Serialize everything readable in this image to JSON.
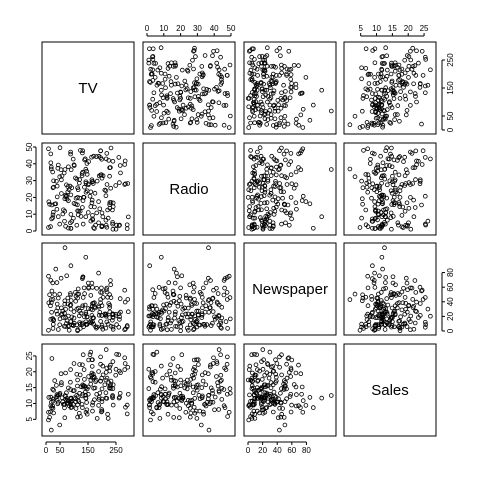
{
  "chart_data": {
    "type": "scatter",
    "variables": [
      "TV",
      "Radio",
      "Newspaper",
      "Sales"
    ],
    "ranges": {
      "TV": [
        0,
        300
      ],
      "Radio": [
        0,
        50
      ],
      "Newspaper": [
        0,
        115
      ],
      "Sales": [
        1,
        27.5
      ]
    },
    "ticks": {
      "TV": [
        0,
        50,
        150,
        250
      ],
      "Radio": [
        0,
        10,
        20,
        30,
        40,
        50
      ],
      "Newspaper": [
        0,
        20,
        40,
        60,
        80
      ],
      "Sales": [
        5,
        10,
        15,
        20,
        25
      ]
    },
    "outer_axes": {
      "top": {
        "col1": "Radio",
        "col3": "Sales"
      },
      "bottom": {
        "col0": "TV",
        "col2": "Newspaper"
      },
      "left": {
        "row1": "Radio",
        "row3": "Sales"
      },
      "right": {
        "row0": "TV",
        "row2": "Newspaper"
      }
    },
    "x": {
      "TV": [
        230,
        44,
        17,
        152,
        181,
        9,
        57,
        120,
        9,
        200,
        66,
        214,
        24,
        98,
        204,
        195,
        68,
        281,
        70,
        147,
        218,
        238,
        13,
        228,
        62,
        263,
        142,
        240,
        249,
        106,
        292,
        10,
        89,
        113,
        290,
        49,
        260,
        232,
        86,
        227,
        55,
        195,
        281,
        294,
        25,
        175,
        89,
        239,
        227,
        67,
        200,
        25,
        283,
        217,
        262,
        152,
        67,
        50,
        166,
        170,
        199,
        21,
        37,
        97,
        166,
        83,
        240,
        73,
        163,
        120,
        173,
        129,
        92,
        115,
        195,
        89,
        119,
        27,
        222,
        40,
        238,
        40,
        189,
        140,
        165,
        151,
        17,
        231,
        131,
        87,
        173,
        198,
        54,
        130,
        105,
        177,
        214,
        138,
        133,
        31,
        142,
        164,
        170,
        239,
        136,
        110,
        143,
        20,
        183,
        215,
        214,
        203,
        101,
        131,
        200,
        142,
        237,
        188,
        55,
        220,
        112,
        27,
        217,
        132,
        266,
        117,
        147,
        284,
        195,
        129,
        19,
        44,
        113,
        164,
        92,
        143,
        166,
        250,
        113,
        88,
        74,
        169,
        188,
        19,
        26,
        145,
        265,
        157,
        80,
        78,
        160,
        75,
        224,
        122,
        134,
        49,
        125,
        78,
        16,
        151,
        88,
        192,
        80,
        199,
        35,
        190,
        146,
        115,
        232,
        227,
        107,
        24,
        166,
        89,
        90,
        215,
        228,
        261,
        100,
        110,
        60,
        70,
        130,
        160,
        137,
        100,
        167,
        180,
        210,
        290,
        80,
        42,
        123,
        70,
        160,
        200,
        65,
        39,
        252,
        240
      ]
    },
    "y": {
      "Radio": [
        37.8,
        39.3,
        45.9,
        41.3,
        10.8,
        48.9,
        32.8,
        19.6,
        2.1,
        2.6,
        5.8,
        24,
        35.1,
        7.6,
        32.9,
        47.7,
        36.6,
        39.6,
        20.5,
        23.9,
        27.7,
        5.1,
        15.9,
        16.9,
        12.6,
        3.5,
        29.3,
        16.7,
        27.1,
        16,
        28.3,
        17.4,
        1.5,
        20,
        1.4,
        4.1,
        43.8,
        49.4,
        26.7,
        37.7,
        22.3,
        33.4,
        27.7,
        8.4,
        25.7,
        22.5,
        9.9,
        41.5,
        15.8,
        11.7,
        3.1,
        9.6,
        41.7,
        46.2,
        28.8,
        28.1,
        19.2,
        49.6,
        29.5,
        2,
        42.7,
        15.5,
        29.6,
        42.8,
        9.3,
        24.6,
        14.5,
        27.5,
        43.9,
        30.6,
        14.3,
        33,
        5.7,
        24.6,
        43.7,
        1.6,
        28.5,
        29.9,
        7.7,
        26.7,
        4.1,
        20.3,
        44.5,
        43,
        18.4,
        27.5,
        40.6,
        25.5,
        47.8,
        4.9,
        1.5,
        33.5,
        36.5,
        14,
        31.6,
        3.5,
        21,
        42.3,
        4.1,
        16.1,
        8.5,
        30.5,
        44.5,
        1.1,
        20,
        3.4,
        23.1,
        7.2,
        29.7,
        3.4,
        6.4,
        8.5,
        38.9,
        35,
        10.8,
        36.8,
        12.5,
        17.5,
        30.4,
        12.5,
        15.6,
        26.1,
        2.2,
        18.1,
        34.6,
        11.9,
        33.7,
        28.1,
        47.8,
        34.2,
        36.9,
        8.6,
        25.8,
        16.8,
        25.8,
        28.4,
        7.2,
        1.1,
        12,
        47,
        20.7,
        28.3,
        4.9,
        38.1,
        11.2,
        35.6,
        39,
        20.7,
        1.7,
        26.4,
        23.3,
        18.9,
        42,
        11.8,
        20.1,
        32.3,
        8.7,
        23.4,
        2.6,
        11,
        45.8,
        13.2,
        38.2,
        2.5,
        16.2,
        32.8,
        40.2,
        9.6,
        17,
        32.6,
        19.5,
        8,
        29.2,
        21.5,
        36.5,
        42.9,
        13.5,
        3.2,
        16.4,
        30.9,
        10.1,
        21.3,
        46.4,
        5.9,
        26.1,
        39.4,
        6.6,
        44.3,
        24.4,
        3.7,
        18,
        37.3,
        48,
        2.8,
        14.5,
        31.4,
        34.5,
        12.9,
        3.5,
        22.5
      ],
      "Newspaper": [
        69.2,
        45.1,
        69.3,
        58.5,
        58.4,
        75,
        23.5,
        11.6,
        1,
        21.2,
        24.2,
        4,
        65.9,
        7.2,
        46,
        52.9,
        114,
        55.8,
        18.3,
        19.1,
        53.4,
        23.5,
        49.6,
        26.2,
        18.3,
        19.5,
        12.6,
        22.9,
        22.9,
        40.8,
        43.2,
        38.6,
        30,
        0.3,
        7.4,
        8.5,
        5,
        45.7,
        35.1,
        32,
        31.6,
        38.7,
        1.8,
        26.4,
        43.3,
        31.5,
        35.7,
        18.5,
        49.9,
        36.8,
        34.6,
        3.6,
        39.6,
        58.7,
        15.9,
        60,
        41.4,
        16.6,
        37.7,
        9.3,
        21.4,
        54.7,
        27.3,
        8.4,
        28.9,
        0.9,
        2.2,
        10.2,
        11,
        27.2,
        38.7,
        31.7,
        19.3,
        31.3,
        13.1,
        89.4,
        20.7,
        14.2,
        9.4,
        23.1,
        22.3,
        36.9,
        32.5,
        35.6,
        33.8,
        65.7,
        16,
        63.2,
        73.4,
        51.4,
        33,
        59,
        72.3,
        10.9,
        52.9,
        5.9,
        22,
        51.2,
        45.9,
        49.8,
        100.9,
        21.4,
        17.9,
        5.3,
        59,
        29.7,
        23.2,
        25.6,
        5.5,
        56.5,
        23.2,
        2.4,
        10.7,
        34.5,
        52.7,
        25.6,
        14.8,
        79.2,
        22.3,
        46.2,
        50.4,
        15.6,
        12.4,
        74.2,
        25.9,
        50.6,
        9.2,
        3.2,
        43.1,
        8.7,
        43,
        2.1,
        45.1,
        65.6,
        8.5,
        9.3,
        59.7,
        20.5,
        1.7,
        12.9,
        75.6,
        37.9,
        34.4,
        38.9,
        9,
        8.7,
        44.3,
        11.9,
        20.6,
        37,
        48.7,
        14.2,
        37.7,
        9.5,
        5.7,
        50.5,
        24.3,
        45.2,
        34.6,
        30.7,
        49.3,
        25.6,
        7.4,
        5.4,
        84.8,
        21.6,
        19.4,
        57.6,
        6.4,
        18.4,
        47.4,
        17,
        12.8,
        13.1,
        41.8,
        20.3,
        35.2,
        23.7,
        17.6,
        8.3,
        27.4,
        29.7,
        71.8,
        30,
        19.6,
        26.6,
        18.2,
        3.7,
        23.4,
        5.8,
        6,
        31.6,
        3.6,
        6,
        13.8,
        8.1,
        6.4,
        66.2,
        8.7
      ],
      "Sales": [
        22.1,
        10.4,
        9.3,
        18.5,
        12.9,
        7.2,
        11.8,
        13.2,
        4.8,
        10.6,
        8.6,
        17.4,
        9.2,
        9.7,
        19,
        22.4,
        12.5,
        24.4,
        11.3,
        14.6,
        18,
        12.5,
        5.6,
        15.5,
        9.7,
        12,
        15,
        15.9,
        18.9,
        10.5,
        21.4,
        11.9,
        9.6,
        17.4,
        9.5,
        12.8,
        25.4,
        14.7,
        10.1,
        21.5,
        16.6,
        17.1,
        20.7,
        12.9,
        8.5,
        14.9,
        10.6,
        23.2,
        14.8,
        9.7,
        11.4,
        10.7,
        22.6,
        21.2,
        20.2,
        23.7,
        5.5,
        13.2,
        23.8,
        18.4,
        8.1,
        24.2,
        15.7,
        14,
        18,
        9.3,
        9.5,
        13.4,
        18.9,
        22.3,
        18.3,
        12.4,
        8.8,
        11,
        17,
        8.7,
        6.9,
        14.2,
        5.3,
        11,
        11.8,
        12.3,
        11.3,
        13.6,
        21.7,
        15.2,
        12,
        16,
        12.9,
        16.7,
        11.2,
        7.3,
        19.4,
        22.2,
        11.5,
        16.9,
        11.7,
        15.5,
        25.4,
        17.2,
        11.7,
        23.8,
        14.8,
        14.7,
        20.7,
        19.2,
        7.2,
        8.7,
        5.3,
        19.8,
        13.4,
        21.8,
        14.1,
        15.9,
        14.6,
        12.6,
        12.2,
        9.4,
        15.9,
        6.6,
        15.5,
        7,
        11.6,
        15.2,
        19.7,
        10.6,
        6.6,
        8.8,
        24.7,
        9.7,
        1.6,
        12.7,
        5.7,
        19.6,
        10.8,
        11.6,
        9.5,
        20.8,
        9.6,
        20.7,
        10.9,
        19.2,
        20.1,
        10.4,
        11.4,
        10.3,
        13.2,
        25.4,
        10.9,
        10.1,
        16.1,
        11.6,
        16.6,
        19,
        15.6,
        3.2,
        15.3,
        10.1,
        7.3,
        12.9,
        14.4,
        13.3,
        14.9,
        18,
        11.9,
        11.9,
        8,
        12.2,
        17.1,
        15,
        8.4,
        14.5,
        7.6,
        11.7,
        11.5,
        27,
        20.2,
        11.7,
        11.8,
        12.6,
        10.5,
        12.2,
        8.7,
        26.2,
        17.6,
        22.6,
        10.3,
        17.3,
        15.9,
        6.7,
        10.8,
        9.9,
        5.9,
        19.6,
        17.3,
        7.6,
        9.7,
        12.8,
        25.5,
        13.4
      ]
    },
    "labels": {
      "TV": "TV",
      "Radio": "Radio",
      "Newspaper": "Newspaper",
      "Sales": "Sales"
    }
  }
}
